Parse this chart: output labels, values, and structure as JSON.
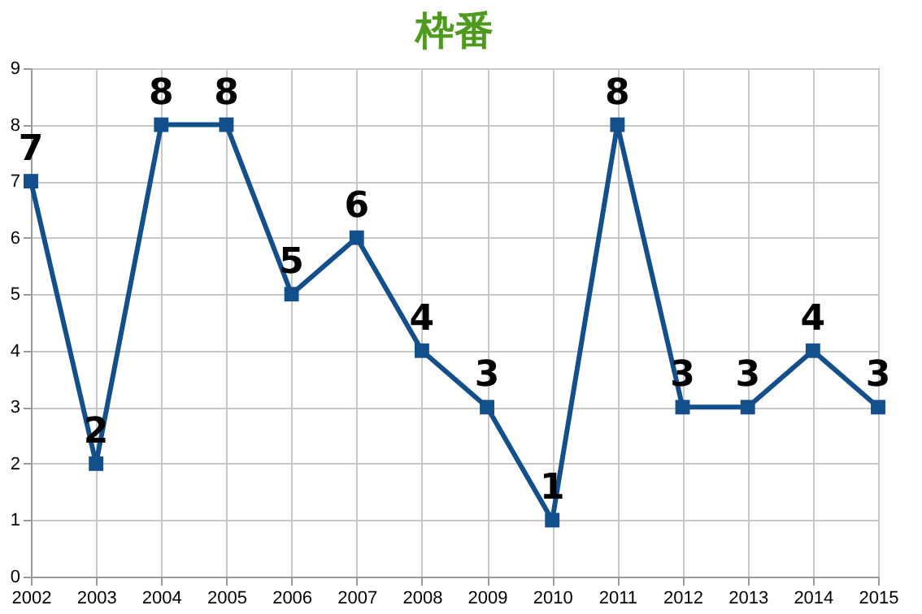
{
  "chart_data": {
    "type": "line",
    "title": "枠番",
    "categories": [
      "2002",
      "2003",
      "2004",
      "2005",
      "2006",
      "2007",
      "2008",
      "2009",
      "2010",
      "2011",
      "2012",
      "2013",
      "2014",
      "2015"
    ],
    "series": [
      {
        "color": "#134f8a",
        "values": [
          7,
          2,
          8,
          8,
          5,
          6,
          4,
          3,
          1,
          8,
          3,
          3,
          4,
          3
        ]
      }
    ],
    "ylim": [
      0,
      9
    ],
    "yticks": [
      0,
      1,
      2,
      3,
      4,
      5,
      6,
      7,
      8,
      9
    ],
    "grid": true,
    "marker": "square",
    "line_style": "solid",
    "data_labels": true
  }
}
